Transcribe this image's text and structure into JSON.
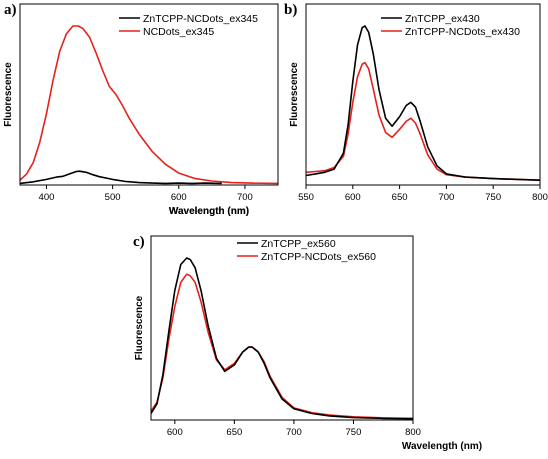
{
  "colors": {
    "black": "#000000",
    "red": "#e8201a"
  },
  "chart_data": [
    {
      "panel": "a)",
      "type": "line",
      "xlabel": "Wavelength (nm)",
      "ylabel": "Fluorescence",
      "xlim": [
        360,
        750
      ],
      "ylim": [
        0,
        1.0
      ],
      "xticks": [
        400,
        500,
        600,
        700
      ],
      "grid": false,
      "legend": "top-right",
      "series": [
        {
          "name": "ZnTCPP-NCDots_ex345",
          "color": "#000000",
          "x": [
            360,
            380,
            400,
            415,
            425,
            435,
            445,
            450,
            460,
            470,
            480,
            500,
            520,
            540,
            560,
            580,
            600,
            620,
            640,
            665
          ],
          "y": [
            0.01,
            0.02,
            0.035,
            0.05,
            0.055,
            0.07,
            0.085,
            0.087,
            0.08,
            0.065,
            0.052,
            0.035,
            0.022,
            0.015,
            0.012,
            0.01,
            0.012,
            0.01,
            0.012,
            0.01
          ]
        },
        {
          "name": "NCDots_ex345",
          "color": "#e8201a",
          "x": [
            360,
            370,
            380,
            390,
            400,
            410,
            420,
            430,
            440,
            448,
            455,
            465,
            475,
            485,
            495,
            505,
            515,
            525,
            540,
            560,
            580,
            600,
            625,
            650,
            680,
            710,
            750
          ],
          "y": [
            0.03,
            0.07,
            0.14,
            0.27,
            0.45,
            0.66,
            0.84,
            0.95,
            1.0,
            1.0,
            0.985,
            0.93,
            0.83,
            0.72,
            0.62,
            0.57,
            0.5,
            0.42,
            0.32,
            0.21,
            0.13,
            0.075,
            0.04,
            0.025,
            0.015,
            0.012,
            0.01
          ]
        }
      ]
    },
    {
      "panel": "b)",
      "type": "line",
      "xlabel": "Wavelength (nm)",
      "ylabel": "Fluorescence",
      "xlim": [
        550,
        800
      ],
      "ylim": [
        0,
        1.0
      ],
      "xticks": [
        550,
        600,
        650,
        700,
        750,
        800
      ],
      "grid": false,
      "legend": "top-right",
      "series": [
        {
          "name": "ZnTCPP_ex430",
          "color": "#000000",
          "x": [
            550,
            560,
            570,
            580,
            590,
            595,
            600,
            605,
            610,
            613,
            617,
            622,
            628,
            635,
            642,
            650,
            657,
            662,
            667,
            672,
            680,
            690,
            700,
            720,
            750,
            800
          ],
          "y": [
            0.06,
            0.07,
            0.08,
            0.1,
            0.2,
            0.38,
            0.65,
            0.88,
            0.99,
            1.0,
            0.96,
            0.82,
            0.6,
            0.42,
            0.37,
            0.43,
            0.5,
            0.52,
            0.49,
            0.4,
            0.24,
            0.12,
            0.07,
            0.05,
            0.04,
            0.03
          ]
        },
        {
          "name": "ZnTCPP-NCDots_ex430",
          "color": "#e8201a",
          "x": [
            550,
            560,
            570,
            580,
            590,
            595,
            600,
            605,
            610,
            613,
            617,
            622,
            628,
            635,
            642,
            650,
            657,
            662,
            667,
            672,
            680,
            690,
            700,
            720,
            750,
            800
          ],
          "y": [
            0.08,
            0.085,
            0.09,
            0.11,
            0.18,
            0.32,
            0.52,
            0.68,
            0.76,
            0.77,
            0.73,
            0.6,
            0.44,
            0.33,
            0.3,
            0.35,
            0.4,
            0.42,
            0.39,
            0.32,
            0.19,
            0.1,
            0.065,
            0.05,
            0.04,
            0.03
          ]
        }
      ]
    },
    {
      "panel": "c)",
      "type": "line",
      "xlabel": "Wavelength (nm)",
      "ylabel": "Fluorescence",
      "xlim": [
        580,
        800
      ],
      "ylim": [
        0,
        1.0
      ],
      "xticks": [
        600,
        650,
        700,
        750,
        800
      ],
      "grid": false,
      "legend": "top-right",
      "series": [
        {
          "name": "ZnTCPP_ex560",
          "color": "#000000",
          "x": [
            580,
            585,
            590,
            595,
            600,
            605,
            610,
            613,
            617,
            622,
            628,
            635,
            642,
            650,
            657,
            662,
            665,
            670,
            675,
            680,
            690,
            700,
            715,
            730,
            750,
            775,
            800
          ],
          "y": [
            0.04,
            0.1,
            0.28,
            0.55,
            0.8,
            0.96,
            1.0,
            0.99,
            0.94,
            0.8,
            0.58,
            0.38,
            0.3,
            0.34,
            0.42,
            0.45,
            0.45,
            0.42,
            0.35,
            0.26,
            0.13,
            0.07,
            0.04,
            0.025,
            0.015,
            0.01,
            0.008
          ]
        },
        {
          "name": "ZnTCPP-NCDots_ex560",
          "color": "#e8201a",
          "x": [
            580,
            585,
            590,
            595,
            600,
            605,
            610,
            613,
            617,
            622,
            628,
            635,
            642,
            650,
            657,
            662,
            665,
            670,
            675,
            680,
            690,
            700,
            715,
            730,
            750,
            775,
            800
          ],
          "y": [
            0.055,
            0.11,
            0.26,
            0.5,
            0.7,
            0.85,
            0.9,
            0.89,
            0.85,
            0.73,
            0.54,
            0.37,
            0.31,
            0.35,
            0.42,
            0.45,
            0.45,
            0.42,
            0.36,
            0.27,
            0.14,
            0.075,
            0.045,
            0.03,
            0.02,
            0.013,
            0.01
          ]
        }
      ]
    }
  ]
}
